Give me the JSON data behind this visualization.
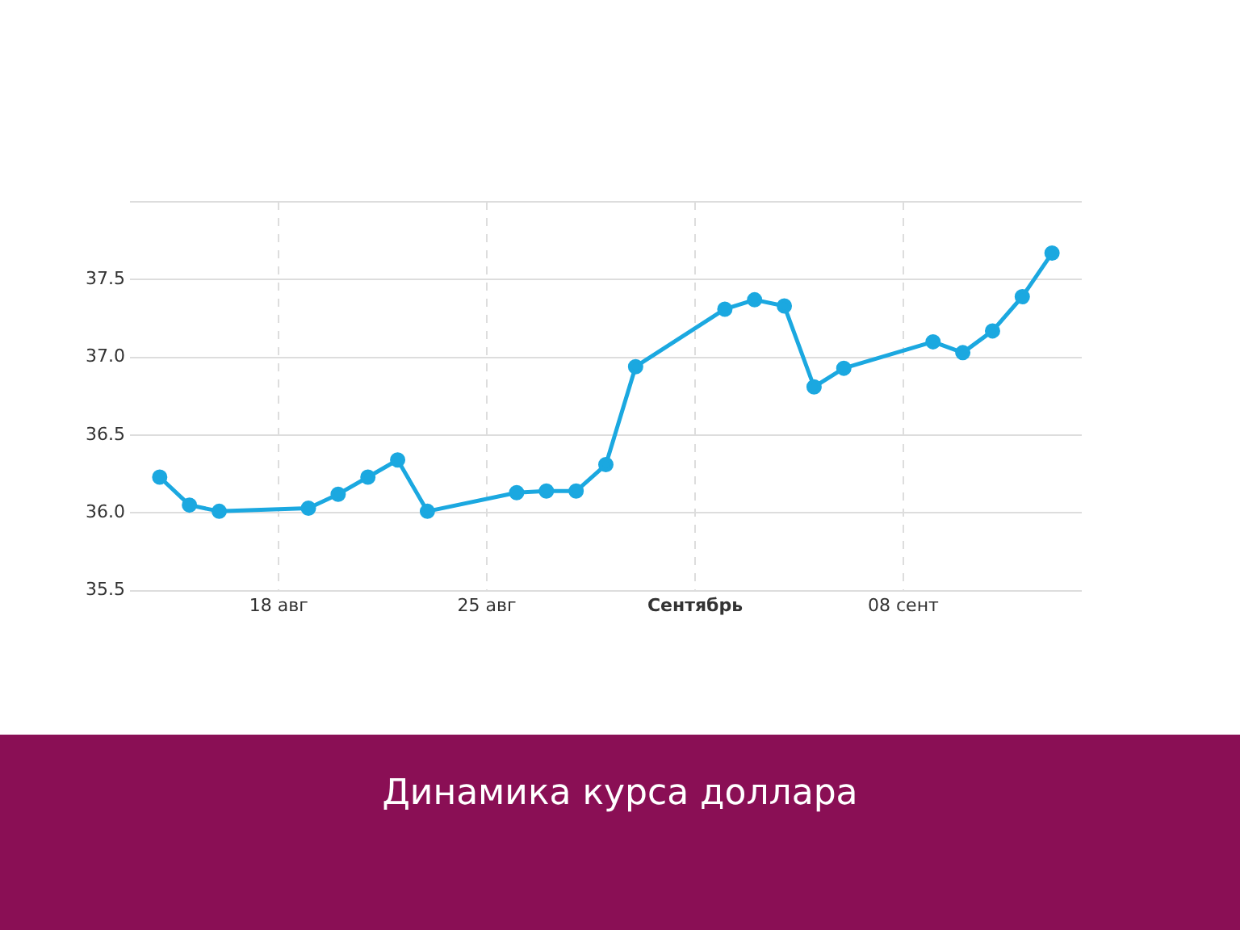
{
  "chart_data": {
    "type": "line",
    "title": "Динамика курса доллара",
    "x": [
      "--08-14",
      "--08-15",
      "--08-16",
      "--08-19",
      "--08-20",
      "--08-21",
      "--08-22",
      "--08-23",
      "--08-26",
      "--08-27",
      "--08-28",
      "--08-29",
      "--08-30",
      "--09-02",
      "--09-03",
      "--09-04",
      "--09-05",
      "--09-06",
      "--09-09",
      "--09-10",
      "--09-11",
      "--09-12",
      "--09-13"
    ],
    "series": [
      {
        "color": "#1ba8e0",
        "values": [
          36.23,
          36.05,
          36.01,
          36.03,
          36.12,
          36.23,
          36.34,
          36.01,
          36.13,
          36.14,
          36.14,
          36.31,
          36.94,
          37.31,
          37.37,
          37.33,
          36.81,
          36.93,
          37.1,
          37.03,
          37.17,
          37.39,
          37.67
        ]
      }
    ],
    "xlim": [
      "--08-13",
      "--09-14"
    ],
    "xticks": [
      {
        "value": "--08-18",
        "label": "18 авг"
      },
      {
        "value": "--08-25",
        "label": "25 авг"
      },
      {
        "value": "--09-01",
        "label": "Сентябрь"
      },
      {
        "value": "--09-08",
        "label": "08 сент"
      }
    ],
    "ylim": [
      35.5,
      38
    ],
    "yticks": [
      {
        "value": 35.5,
        "label": "35.5"
      },
      {
        "value": 36,
        "label": "36.0"
      },
      {
        "value": 36.5,
        "label": "36.5"
      },
      {
        "value": 37,
        "label": "37.0"
      },
      {
        "value": 37.5,
        "label": "37.5"
      },
      {
        "value": 38,
        "label": null
      }
    ],
    "grid": true,
    "legend": false,
    "marker": "circle",
    "line_style": "solid"
  }
}
